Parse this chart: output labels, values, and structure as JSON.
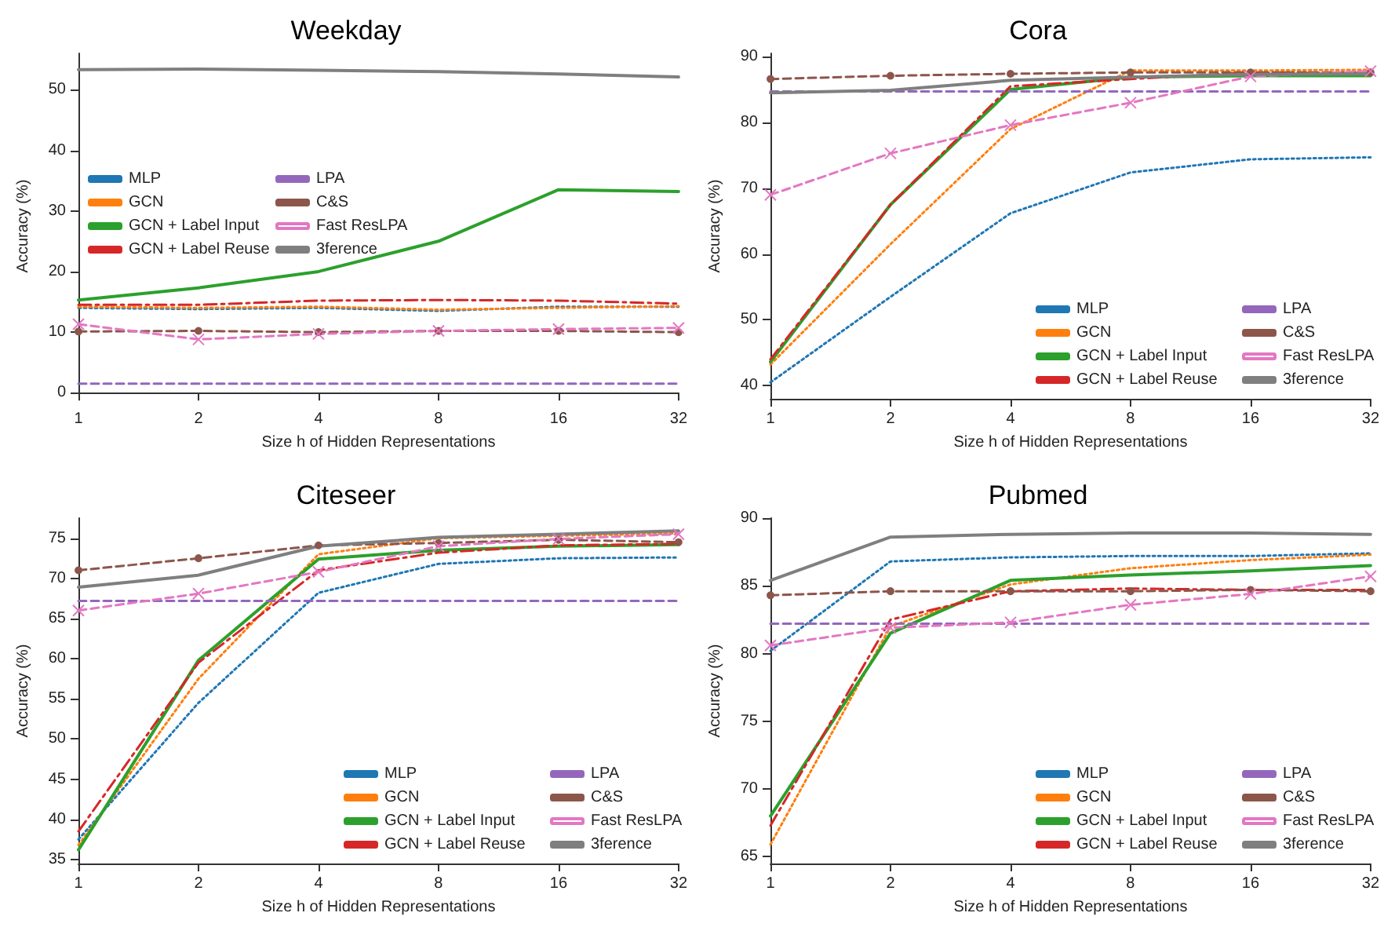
{
  "chart_data": [
    {
      "type": "line",
      "title": "Weekday",
      "xlabel": "Size h of Hidden Representations",
      "ylabel": "Accuracy (%)",
      "categories": [
        "1",
        "2",
        "4",
        "8",
        "16",
        "32"
      ],
      "ylim": [
        -1,
        56
      ],
      "yticks": [
        0,
        10,
        20,
        30,
        40,
        50
      ],
      "grid": false,
      "legend": "left",
      "series": [
        {
          "name": "MLP",
          "color": "#1f77b4",
          "line_style": "dotted",
          "marker": "none",
          "values": [
            14,
            13.8,
            14,
            13.5,
            14.2,
            14.2
          ]
        },
        {
          "name": "GCN",
          "color": "#ff7f0e",
          "line_style": "dotted",
          "marker": "none",
          "values": [
            14.2,
            14,
            14.2,
            13.7,
            14,
            14.3
          ]
        },
        {
          "name": "GCN + Label Input",
          "color": "#2ca02c",
          "line_style": "solid",
          "marker": "none",
          "values": [
            15.3,
            17.3,
            20,
            25,
            33.5,
            33.2
          ]
        },
        {
          "name": "GCN + Label Reuse",
          "color": "#d62728",
          "line_style": "dashdot",
          "marker": "none",
          "values": [
            14.5,
            14.5,
            15.2,
            15.3,
            15.2,
            14.7
          ]
        },
        {
          "name": "LPA",
          "color": "#9467bd",
          "line_style": "dashed",
          "marker": "none",
          "values": [
            1.5,
            1.5,
            1.5,
            1.5,
            1.5,
            1.5
          ]
        },
        {
          "name": "C&S",
          "color": "#8c564b",
          "line_style": "dashed",
          "marker": "circle",
          "values": [
            10.1,
            10.2,
            10,
            10.2,
            10.2,
            10
          ]
        },
        {
          "name": "Fast ResLPA",
          "color": "#e377c2",
          "line_style": "dashed",
          "marker": "cross",
          "values": [
            11.3,
            8.8,
            9.7,
            10.2,
            10.5,
            10.7
          ]
        },
        {
          "name": "3ference",
          "color": "#7f7f7f",
          "line_style": "solid",
          "marker": "none",
          "values": [
            53.3,
            53.4,
            53.2,
            53,
            52.6,
            52.1
          ]
        }
      ]
    },
    {
      "type": "line",
      "title": "Cora",
      "xlabel": "Size h of Hidden Representations",
      "ylabel": "Accuracy (%)",
      "categories": [
        "1",
        "2",
        "4",
        "8",
        "16",
        "32"
      ],
      "ylim": [
        38,
        90.5
      ],
      "yticks": [
        40,
        50,
        60,
        70,
        80,
        90
      ],
      "grid": false,
      "legend": "bottom right",
      "series": [
        {
          "name": "MLP",
          "color": "#1f77b4",
          "line_style": "dotted",
          "marker": "none",
          "values": [
            40.5,
            53.5,
            66.2,
            72.4,
            74.4,
            74.7
          ]
        },
        {
          "name": "GCN",
          "color": "#ff7f0e",
          "line_style": "dotted",
          "marker": "none",
          "values": [
            43.2,
            61.5,
            79,
            87.9,
            87.9,
            88
          ]
        },
        {
          "name": "GCN + Label Input",
          "color": "#2ca02c",
          "line_style": "solid",
          "marker": "none",
          "values": [
            43.6,
            67.5,
            85,
            86.9,
            87.1,
            87.1
          ]
        },
        {
          "name": "GCN + Label Reuse",
          "color": "#d62728",
          "line_style": "dashdot",
          "marker": "none",
          "values": [
            44,
            67.5,
            85.5,
            86.6,
            87.6,
            87.5
          ]
        },
        {
          "name": "LPA",
          "color": "#9467bd",
          "line_style": "dashed",
          "marker": "none",
          "values": [
            84.7,
            84.7,
            84.7,
            84.7,
            84.7,
            84.7
          ]
        },
        {
          "name": "C&S",
          "color": "#8c564b",
          "line_style": "dashed",
          "marker": "circle",
          "values": [
            86.6,
            87.1,
            87.4,
            87.6,
            87.6,
            87.6
          ]
        },
        {
          "name": "Fast ResLPA",
          "color": "#e377c2",
          "line_style": "dashed",
          "marker": "cross",
          "values": [
            69,
            75.3,
            79.6,
            83,
            87,
            87.8
          ]
        },
        {
          "name": "3ference",
          "color": "#7f7f7f",
          "line_style": "solid",
          "marker": "none",
          "values": [
            84.5,
            84.9,
            86.4,
            86.9,
            87.3,
            87.4
          ]
        }
      ]
    },
    {
      "type": "line",
      "title": "Citeseer",
      "xlabel": "Size h of Hidden Representations",
      "ylabel": "Accuracy (%)",
      "categories": [
        "1",
        "2",
        "4",
        "8",
        "16",
        "32"
      ],
      "ylim": [
        34.5,
        77.5
      ],
      "yticks": [
        35,
        40,
        45,
        50,
        55,
        60,
        65,
        70,
        75
      ],
      "grid": false,
      "legend": "bottom right",
      "series": [
        {
          "name": "MLP",
          "color": "#1f77b4",
          "line_style": "dotted",
          "marker": "none",
          "values": [
            37.5,
            54.5,
            68.2,
            71.8,
            72.5,
            72.6
          ]
        },
        {
          "name": "GCN",
          "color": "#ff7f0e",
          "line_style": "dotted",
          "marker": "none",
          "values": [
            36.8,
            57.5,
            73,
            75,
            75.3,
            75.6
          ]
        },
        {
          "name": "GCN + Label Input",
          "color": "#2ca02c",
          "line_style": "solid",
          "marker": "none",
          "values": [
            36.2,
            59.8,
            72.4,
            73.5,
            74,
            74.2
          ]
        },
        {
          "name": "GCN + Label Reuse",
          "color": "#d62728",
          "line_style": "dashdot",
          "marker": "none",
          "values": [
            38.5,
            59.5,
            71,
            73.2,
            74.1,
            74.3
          ]
        },
        {
          "name": "LPA",
          "color": "#9467bd",
          "line_style": "dashed",
          "marker": "none",
          "values": [
            67.2,
            67.2,
            67.2,
            67.2,
            67.2,
            67.2
          ]
        },
        {
          "name": "C&S",
          "color": "#8c564b",
          "line_style": "dashed",
          "marker": "circle",
          "values": [
            71,
            72.5,
            74.1,
            74.4,
            74.8,
            74.5
          ]
        },
        {
          "name": "Fast ResLPA",
          "color": "#e377c2",
          "line_style": "dashed",
          "marker": "cross",
          "values": [
            66,
            68.1,
            70.8,
            74,
            74.9,
            75.5
          ]
        },
        {
          "name": "3ference",
          "color": "#7f7f7f",
          "line_style": "solid",
          "marker": "none",
          "values": [
            68.9,
            70.4,
            74,
            75.1,
            75.5,
            75.9
          ]
        }
      ]
    },
    {
      "type": "line",
      "title": "Pubmed",
      "xlabel": "Size h of Hidden Representations",
      "ylabel": "Accuracy (%)",
      "categories": [
        "1",
        "2",
        "4",
        "8",
        "16",
        "32"
      ],
      "ylim": [
        64.5,
        90
      ],
      "yticks": [
        65,
        70,
        75,
        80,
        85,
        90
      ],
      "grid": false,
      "legend": "bottom right",
      "series": [
        {
          "name": "MLP",
          "color": "#1f77b4",
          "line_style": "dotted",
          "marker": "none",
          "values": [
            80.2,
            86.8,
            87.1,
            87.2,
            87.2,
            87.4
          ]
        },
        {
          "name": "GCN",
          "color": "#ff7f0e",
          "line_style": "dotted",
          "marker": "none",
          "values": [
            65.9,
            82,
            85.1,
            86.3,
            86.9,
            87.3
          ]
        },
        {
          "name": "GCN + Label Input",
          "color": "#2ca02c",
          "line_style": "solid",
          "marker": "none",
          "values": [
            68,
            81.5,
            85.4,
            85.8,
            86.1,
            86.5
          ]
        },
        {
          "name": "GCN + Label Reuse",
          "color": "#d62728",
          "line_style": "dashdot",
          "marker": "none",
          "values": [
            67.3,
            82.5,
            84.6,
            84.8,
            84.7,
            84.7
          ]
        },
        {
          "name": "LPA",
          "color": "#9467bd",
          "line_style": "dashed",
          "marker": "none",
          "values": [
            82.2,
            82.2,
            82.2,
            82.2,
            82.2,
            82.2
          ]
        },
        {
          "name": "C&S",
          "color": "#8c564b",
          "line_style": "dashed",
          "marker": "circle",
          "values": [
            84.3,
            84.6,
            84.6,
            84.6,
            84.7,
            84.6
          ]
        },
        {
          "name": "Fast ResLPA",
          "color": "#e377c2",
          "line_style": "dashed",
          "marker": "cross",
          "values": [
            80.6,
            81.9,
            82.3,
            83.6,
            84.4,
            85.7
          ]
        },
        {
          "name": "3ference",
          "color": "#7f7f7f",
          "line_style": "solid",
          "marker": "none",
          "values": [
            85.4,
            88.6,
            88.8,
            88.9,
            88.9,
            88.8
          ]
        }
      ]
    }
  ]
}
